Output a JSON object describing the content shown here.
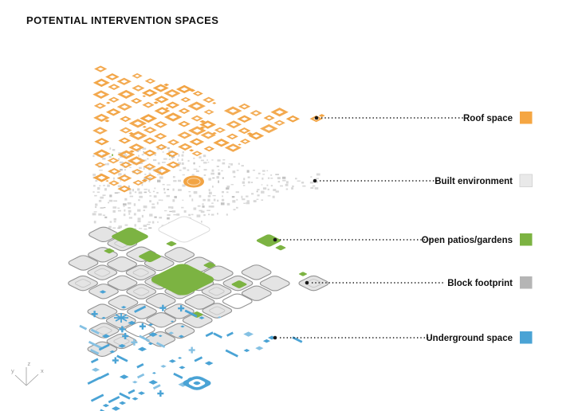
{
  "title": "POTENTIAL INTERVENTION SPACES",
  "colors": {
    "background": "#ffffff",
    "roof_orange": "#F2A444",
    "built_speckle_gray": "#D8D8D8",
    "built_speckle_dark": "#C3C3C3",
    "patio_green": "#7CB342",
    "block_fill_gray": "#E4E4E4",
    "block_stroke_gray": "#939393",
    "underground_blue": "#4AA3D5",
    "underground_blue_light": "#85C1E3",
    "leader_black": "#1a1a1a",
    "text_black": "#111111",
    "axis_gray": "#9b9b9b"
  },
  "legend": {
    "items": [
      {
        "id": "roof-space",
        "label": "Roof space",
        "color": "#F5A642",
        "border": "none"
      },
      {
        "id": "built-environment",
        "label": "Built environment",
        "color": "#E9E9E9",
        "border": "#D6D6D6"
      },
      {
        "id": "open-patios-gardens",
        "label": "Open patios/gardens",
        "color": "#7CB342",
        "border": "none"
      },
      {
        "id": "block-footprint",
        "label": "Block footprint",
        "color": "#B5B5B5",
        "border": "none"
      },
      {
        "id": "underground-space",
        "label": "Underground space",
        "color": "#4AA3D5",
        "border": "none"
      }
    ]
  },
  "layers": [
    {
      "name": "Roof space",
      "color": "#F2A444"
    },
    {
      "name": "Built environment",
      "color": "#D8D8D8"
    },
    {
      "name": "Open patios/gardens",
      "color": "#7CB342"
    },
    {
      "name": "Block footprint",
      "color": "#E4E4E4"
    },
    {
      "name": "Underground space",
      "color": "#4AA3D5"
    }
  ],
  "axes": {
    "x_label": "x",
    "y_label": "y",
    "z_label": "z"
  }
}
